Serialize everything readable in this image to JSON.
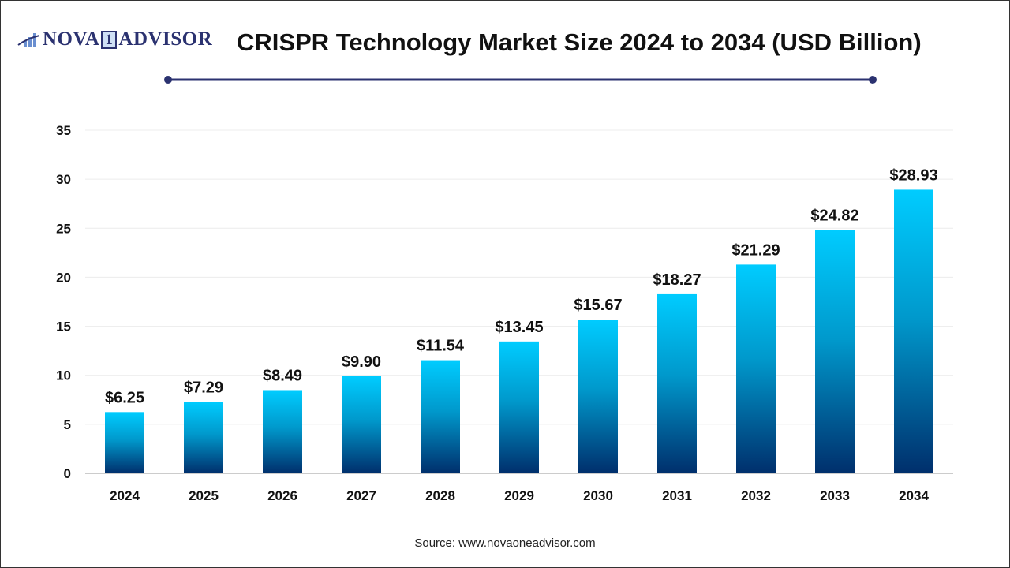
{
  "header": {
    "logo_text": "NOVA1ADVISOR",
    "title": "CRISPR Technology Market Size 2024 to 2034 (USD Billion)"
  },
  "footer": {
    "source": "Source: www.novaoneadvisor.com"
  },
  "colors": {
    "bar_top": "#00CCFF",
    "bar_bottom": "#002F6C",
    "title_rule": "#2b3270"
  },
  "chart_data": {
    "type": "bar",
    "title": "CRISPR Technology Market Size 2024 to 2034 (USD Billion)",
    "categories": [
      "2024",
      "2025",
      "2026",
      "2027",
      "2028",
      "2029",
      "2030",
      "2031",
      "2032",
      "2033",
      "2034"
    ],
    "values": [
      6.25,
      7.29,
      8.49,
      9.9,
      11.54,
      13.45,
      15.67,
      18.27,
      21.29,
      24.82,
      28.93
    ],
    "data_labels": [
      "$6.25",
      "$7.29",
      "$8.49",
      "$9.90",
      "$11.54",
      "$13.45",
      "$15.67",
      "$18.27",
      "$21.29",
      "$24.82",
      "$28.93"
    ],
    "yticks": [
      0,
      5,
      10,
      15,
      20,
      25,
      30,
      35
    ],
    "ylim": [
      0,
      35
    ],
    "xlabel": "",
    "ylabel": "",
    "grid": true,
    "legend": "none"
  }
}
